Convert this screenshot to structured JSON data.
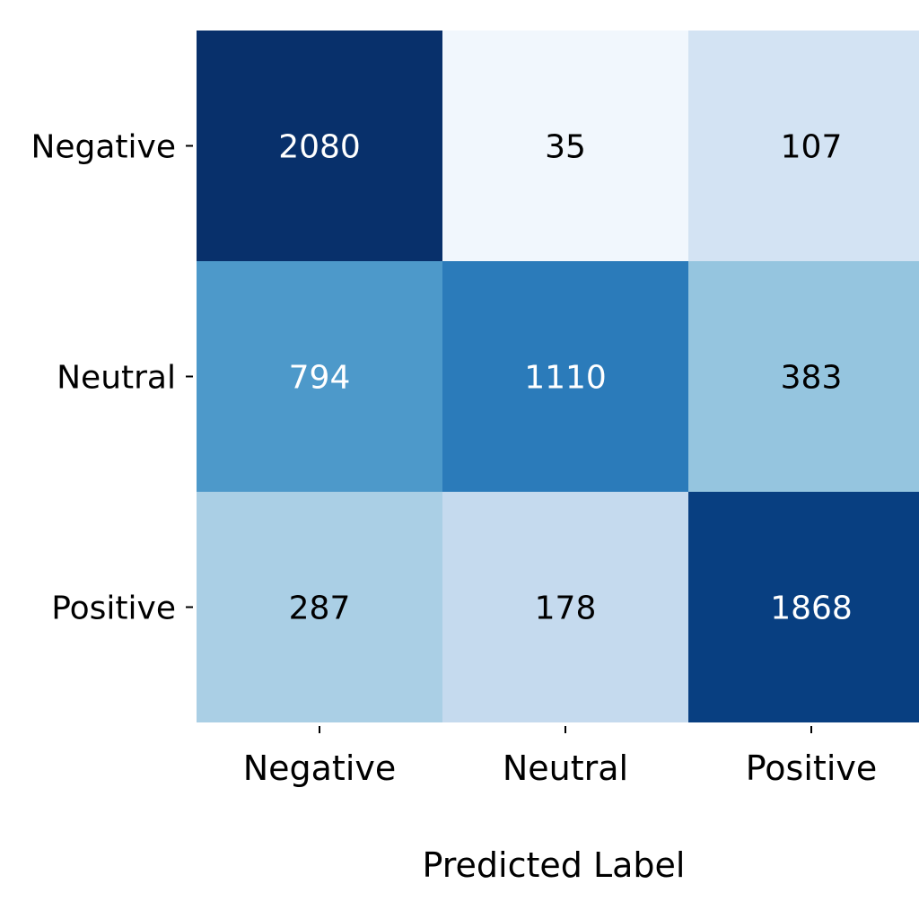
{
  "chart_data": {
    "type": "heatmap",
    "title": "",
    "xlabel": "Predicted Label",
    "ylabel": "",
    "x_categories": [
      "Negative",
      "Neutral",
      "Positive"
    ],
    "y_categories": [
      "Negative",
      "Neutral",
      "Positive"
    ],
    "values": [
      [
        2080,
        35,
        107
      ],
      [
        794,
        1110,
        383
      ],
      [
        287,
        178,
        1868
      ]
    ],
    "colormap": "Blues",
    "colors": {
      "low": "#eef6fd",
      "high": "#03377c",
      "text_light": "#ffffff",
      "text_dark": "#000000"
    },
    "grid": false,
    "legend": "none"
  }
}
